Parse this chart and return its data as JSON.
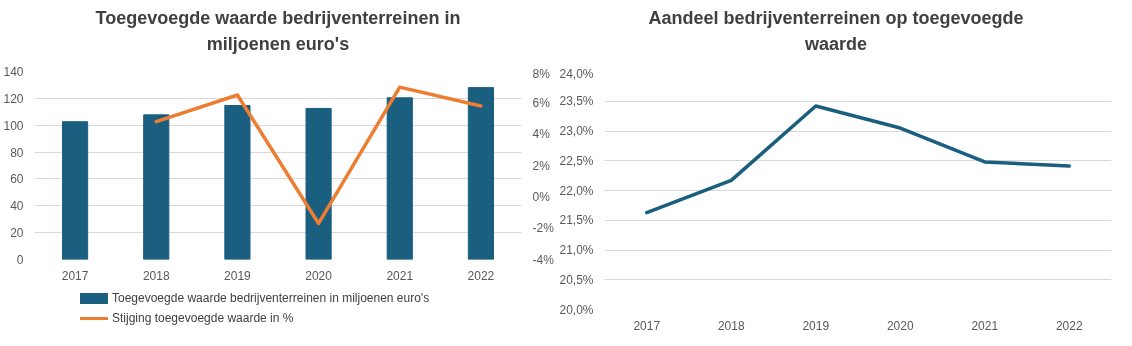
{
  "chart_data": [
    {
      "type": "bar",
      "title": "Toegevoegde waarde bedrijventerreinen in miljoenen euro's",
      "categories": [
        "2017",
        "2018",
        "2019",
        "2020",
        "2021",
        "2022"
      ],
      "series": [
        {
          "name": "Toegevoegde waarde bedrijventerreinen in miljoenen euro's",
          "color": "#1a5e80",
          "values": [
            102.6,
            107.7,
            114.7,
            112.5,
            120.4,
            128
          ]
        },
        {
          "name": "Stijging toegevoegde waarde in %",
          "type": "line",
          "axis": "y2",
          "color": "#ed7d31",
          "values": [
            null,
            4.8,
            6.5,
            -1.7,
            7.0,
            5.8
          ]
        }
      ],
      "ylim": [
        0,
        140
      ],
      "yticks": [
        0,
        20,
        40,
        60,
        80,
        100,
        120,
        140
      ],
      "y2lim": [
        -4,
        8
      ],
      "y2ticks": [
        {
          "value": -4,
          "label": "-4%"
        },
        {
          "value": -2,
          "label": "-2%"
        },
        {
          "value": 0,
          "label": "0%"
        },
        {
          "value": 2,
          "label": "2%"
        },
        {
          "value": 4,
          "label": "4%"
        },
        {
          "value": 6,
          "label": "6%"
        },
        {
          "value": 8,
          "label": "8%"
        }
      ],
      "grid": "y",
      "legend": "bottom"
    },
    {
      "type": "line",
      "title": "Aandeel bedrijventerreinen op toegevoegde waarde",
      "categories": [
        "2017",
        "2018",
        "2019",
        "2020",
        "2021",
        "2022"
      ],
      "series": [
        {
          "color": "#1a5e80",
          "values": [
            21.63,
            22.17,
            23.42,
            23.05,
            22.48,
            22.41
          ]
        }
      ],
      "ylim": [
        20,
        24
      ],
      "yticks": [
        {
          "value": 20,
          "label": "20,0%"
        },
        {
          "value": 20.5,
          "label": "20,5%"
        },
        {
          "value": 21,
          "label": "21,0%"
        },
        {
          "value": 21.5,
          "label": "21,5%"
        },
        {
          "value": 22,
          "label": "22,0%"
        },
        {
          "value": 22.5,
          "label": "22,5%"
        },
        {
          "value": 23,
          "label": "23,0%"
        },
        {
          "value": 23.5,
          "label": "23,5%"
        },
        {
          "value": 24,
          "label": "24,0%"
        }
      ],
      "grid": "y"
    }
  ]
}
